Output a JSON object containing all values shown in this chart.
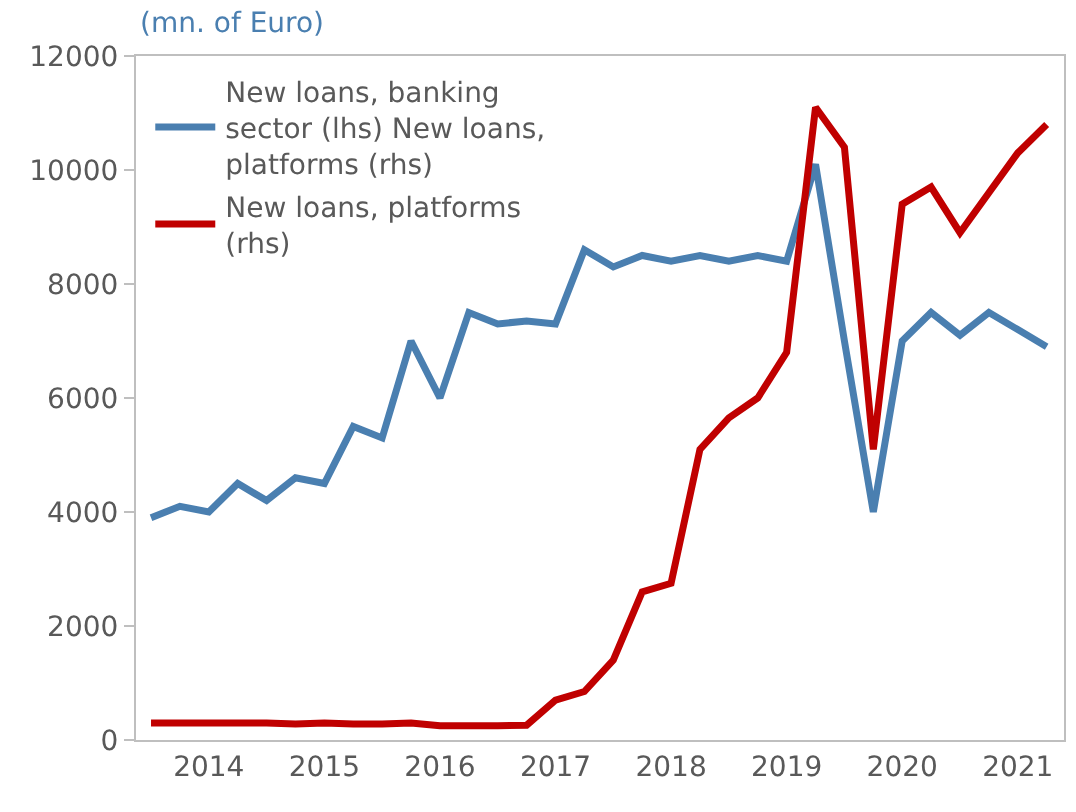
{
  "chart_data": {
    "type": "line",
    "ylabel": "(mn. of Euro)",
    "x": [
      2014,
      2014.25,
      2014.5,
      2014.75,
      2015,
      2015.25,
      2015.5,
      2015.75,
      2016,
      2016.25,
      2016.5,
      2016.75,
      2017,
      2017.25,
      2017.5,
      2017.75,
      2018,
      2018.25,
      2018.5,
      2018.75,
      2019,
      2019.25,
      2019.5,
      2019.75,
      2020,
      2020.25,
      2020.5,
      2020.75,
      2021,
      2021.25,
      2021.5,
      2021.75
    ],
    "series": [
      {
        "name": "New loans, banking sector (lhs) New loans, platforms (rhs)",
        "color": "#4a7fb0",
        "values": [
          3900,
          4100,
          4000,
          4500,
          4200,
          4600,
          4500,
          5500,
          5300,
          7000,
          6000,
          7500,
          7300,
          7350,
          7300,
          8600,
          8300,
          8500,
          8400,
          8500,
          8400,
          8500,
          8400,
          10100,
          7000,
          4000,
          7000,
          7500,
          7100,
          7500,
          7200,
          6900
        ]
      },
      {
        "name": "New loans, platforms (rhs)",
        "color": "#c00000",
        "values": [
          300,
          300,
          300,
          300,
          300,
          280,
          300,
          280,
          280,
          300,
          250,
          250,
          250,
          260,
          700,
          850,
          1400,
          2600,
          2750,
          5100,
          5650,
          6000,
          6800,
          11100,
          10400,
          5100,
          9400,
          9700,
          8900,
          9600,
          10300,
          10800
        ]
      }
    ],
    "xlim": [
      2013.87,
      2021.9
    ],
    "xticks": [
      {
        "value": 2014.5,
        "label": "2014"
      },
      {
        "value": 2015.5,
        "label": "2015"
      },
      {
        "value": 2016.5,
        "label": "2016"
      },
      {
        "value": 2017.5,
        "label": "2017"
      },
      {
        "value": 2018.5,
        "label": "2018"
      },
      {
        "value": 2019.5,
        "label": "2019"
      },
      {
        "value": 2020.5,
        "label": "2020"
      },
      {
        "value": 2021.5,
        "label": "2021"
      }
    ],
    "ylim": [
      0,
      12000
    ],
    "yticks": [
      0,
      2000,
      4000,
      6000,
      8000,
      10000,
      12000
    ],
    "grid": false,
    "legend": "top left",
    "marker": "none",
    "line_style": "solid"
  }
}
